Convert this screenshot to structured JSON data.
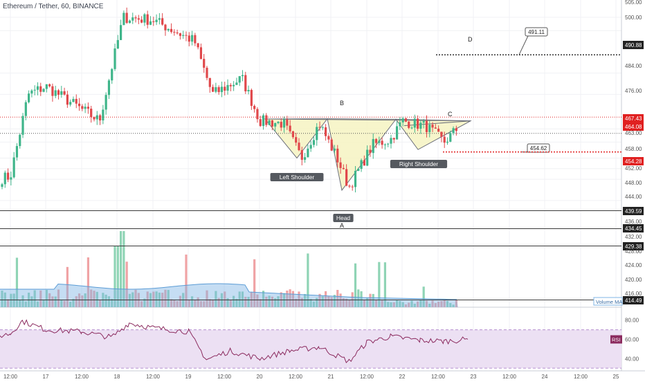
{
  "header": {
    "symbol_title": "Ethereum / Tether, 60, BINANCE"
  },
  "colors": {
    "up": "#3fb58a",
    "down": "#e0484b",
    "ma": "#7fb4e4",
    "vol_up": "#8fd4b5",
    "vol_down": "#f0a3a5",
    "pattern_fill": "#f6f3c2",
    "pattern_stroke": "#6b6e79",
    "rsi_bg": "#ece0f3",
    "rsi_line": "#8b2a5e",
    "level_red": "#e02020"
  },
  "axes": {
    "price_ticks": [
      "505.00",
      "500.00",
      "491.11",
      "490.88",
      "484.00",
      "476.00",
      "467.43",
      "464.08",
      "463.00",
      "458.00",
      "454.62",
      "454.28",
      "452.00",
      "448.00",
      "444.00",
      "439.59",
      "436.00",
      "434.45",
      "432.00",
      "429.38",
      "428.00",
      "424.00",
      "420.00",
      "416.00",
      "414.49"
    ],
    "rsi_ticks": [
      "80.00",
      "60.00",
      "40.00"
    ],
    "time_ticks": [
      "12:00",
      "17",
      "12:00",
      "18",
      "12:00",
      "19",
      "12:00",
      "20",
      "12:00",
      "21",
      "12:00",
      "22",
      "12:00",
      "23",
      "12:00",
      "24",
      "12:00",
      "25"
    ]
  },
  "levels": {
    "close_label": "467.43",
    "last_label": "464.08",
    "support_label": "454.28",
    "target_label": "490.88",
    "lower_labels": [
      "439.59",
      "434.45",
      "429.38",
      "414.49"
    ]
  },
  "annotations": {
    "point_b": "B",
    "point_c": "C",
    "point_d": "D",
    "point_a": "A",
    "left_shoulder": "Left Shoulder",
    "head": "Head",
    "right_shoulder": "Right Shoulder",
    "callout_top": "491.11",
    "callout_mid": "454.62"
  },
  "indicators": {
    "volume_label": "Volume MA",
    "rsi_label": "RSI"
  },
  "chart_data": {
    "type": "candlestick",
    "title": "Ethereum / Tether, 60, BINANCE",
    "timeframe": "60",
    "y_scale": {
      "price_range": [
        434,
        506
      ],
      "rsi_range": [
        33,
        87
      ]
    },
    "grid": true,
    "anchors": [
      {
        "t": "16 12:00",
        "price": 445
      },
      {
        "t": "16 18:00",
        "price": 476
      },
      {
        "t": "17 00:00",
        "price": 479
      },
      {
        "t": "17 18:00",
        "price": 466
      },
      {
        "t": "18 02:00",
        "price": 505
      },
      {
        "t": "18 12:00",
        "price": 504
      },
      {
        "t": "19 02:00",
        "price": 496
      },
      {
        "t": "19 08:00",
        "price": 476
      },
      {
        "t": "19 18:00",
        "price": 482
      },
      {
        "t": "20 00:00",
        "price": 466
      },
      {
        "t": "20 08:00",
        "price": 465
      },
      {
        "t": "20 14:00",
        "price": 452
      },
      {
        "t": "20 20:00",
        "price": 465
      },
      {
        "t": "21 02:00",
        "price": 452
      },
      {
        "t": "21 06:00",
        "price": 441
      },
      {
        "t": "21 14:00",
        "price": 457
      },
      {
        "t": "21 20:00",
        "price": 459
      },
      {
        "t": "22 00:00",
        "price": 466
      },
      {
        "t": "22 08:00",
        "price": 464
      },
      {
        "t": "22 14:00",
        "price": 458
      },
      {
        "t": "22 22:00",
        "price": 467
      }
    ],
    "rsi": [
      {
        "t": "16 00:00",
        "value": 58
      },
      {
        "t": "16 12:00",
        "value": 66
      },
      {
        "t": "16 16:00",
        "value": 79
      },
      {
        "t": "17 00:00",
        "value": 70
      },
      {
        "t": "17 12:00",
        "value": 68
      },
      {
        "t": "17 22:00",
        "value": 62
      },
      {
        "t": "18 04:00",
        "value": 77
      },
      {
        "t": "18 12:00",
        "value": 72
      },
      {
        "t": "19 00:00",
        "value": 68
      },
      {
        "t": "19 06:00",
        "value": 39
      },
      {
        "t": "19 14:00",
        "value": 48
      },
      {
        "t": "20 00:00",
        "value": 40
      },
      {
        "t": "20 10:00",
        "value": 48
      },
      {
        "t": "20 20:00",
        "value": 52
      },
      {
        "t": "21 06:00",
        "value": 37
      },
      {
        "t": "21 12:00",
        "value": 57
      },
      {
        "t": "21 20:00",
        "value": 63
      },
      {
        "t": "22 06:00",
        "value": 59
      },
      {
        "t": "22 14:00",
        "value": 58
      },
      {
        "t": "22 22:00",
        "value": 60
      }
    ],
    "levels": [
      {
        "name": "target",
        "value": 490.88
      },
      {
        "name": "close",
        "value": 467.43
      },
      {
        "name": "last",
        "value": 464.08
      },
      {
        "name": "support",
        "value": 454.28
      },
      {
        "name": "low",
        "value": 439.59
      }
    ],
    "pattern": {
      "name": "inverse head and shoulders",
      "points": {
        "B": 466.7,
        "Left Shoulder": 452.0,
        "Head": 439.9,
        "Right Shoulder": 455.2,
        "C": 466.0
      }
    }
  }
}
